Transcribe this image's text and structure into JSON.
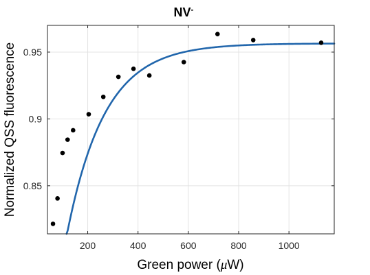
{
  "chart_data": {
    "type": "scatter",
    "title": "NV",
    "title_superscript": "-",
    "xlabel": "Green power (",
    "xlabel_mu": "μ",
    "xlabel_end": "W)",
    "ylabel": "Normalized QSS fluorescence",
    "xlim": [
      40,
      1180
    ],
    "ylim": [
      0.814,
      0.97
    ],
    "x_ticks": [
      200,
      400,
      600,
      800,
      1000
    ],
    "x_tick_labels": [
      "200",
      "400",
      "600",
      "800",
      "1000"
    ],
    "y_ticks": [
      0.85,
      0.9,
      0.95
    ],
    "y_tick_labels": [
      "0.85",
      "0.9",
      "0.95"
    ],
    "grid": true,
    "series": [
      {
        "type": "scatter",
        "color": "#000000",
        "x": [
          62,
          80,
          100,
          120,
          142,
          204,
          262,
          322,
          382,
          445,
          582,
          716,
          858,
          1128
        ],
        "y": [
          0.8215,
          0.8405,
          0.8745,
          0.8845,
          0.8915,
          0.9035,
          0.9165,
          0.9315,
          0.9375,
          0.9325,
          0.9425,
          0.9635,
          0.959,
          0.957
        ]
      },
      {
        "type": "line",
        "color": "#2166ac",
        "model": "exponential-saturation",
        "asymptote": 0.9565,
        "amplitude": 0.312,
        "rate": 0.00665,
        "x_start": 55,
        "x_end": 1180
      }
    ]
  }
}
